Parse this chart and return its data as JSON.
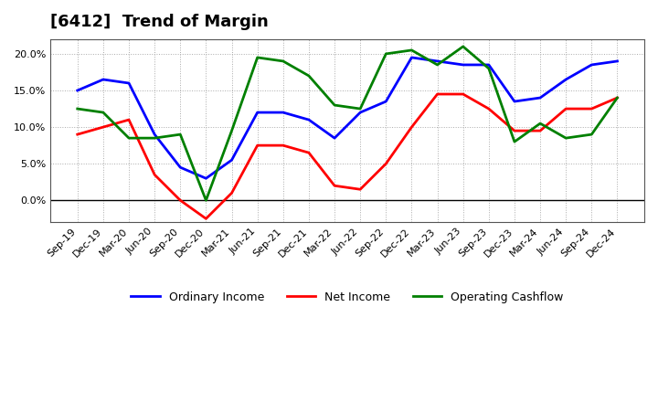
{
  "title": "[6412]  Trend of Margin",
  "x_labels": [
    "Sep-19",
    "Dec-19",
    "Mar-20",
    "Jun-20",
    "Sep-20",
    "Dec-20",
    "Mar-21",
    "Jun-21",
    "Sep-21",
    "Dec-21",
    "Mar-22",
    "Jun-22",
    "Sep-22",
    "Dec-22",
    "Mar-23",
    "Jun-23",
    "Sep-23",
    "Dec-23",
    "Mar-24",
    "Jun-24",
    "Sep-24",
    "Dec-24"
  ],
  "ordinary_income": [
    15.0,
    16.5,
    16.0,
    9.0,
    4.5,
    3.0,
    5.5,
    12.0,
    12.0,
    11.0,
    8.5,
    12.0,
    13.5,
    19.5,
    19.0,
    18.5,
    18.5,
    13.5,
    14.0,
    16.5,
    18.5,
    19.0
  ],
  "net_income": [
    9.0,
    10.0,
    11.0,
    3.5,
    0.0,
    -2.5,
    1.0,
    7.5,
    7.5,
    6.5,
    2.0,
    1.5,
    5.0,
    10.0,
    14.5,
    14.5,
    12.5,
    9.5,
    9.5,
    12.5,
    12.5,
    14.0
  ],
  "operating_cashflow": [
    12.5,
    12.0,
    8.5,
    8.5,
    9.0,
    0.0,
    9.5,
    19.5,
    19.0,
    17.0,
    13.0,
    12.5,
    20.0,
    20.5,
    18.5,
    21.0,
    18.0,
    8.0,
    10.5,
    8.5,
    9.0,
    14.0
  ],
  "ordinary_income_color": "#0000ff",
  "net_income_color": "#ff0000",
  "operating_cashflow_color": "#008000",
  "ylim": [
    -3,
    22
  ],
  "yticks": [
    0.0,
    5.0,
    10.0,
    15.0,
    20.0
  ],
  "background_color": "#ffffff",
  "plot_bg_color": "#ffffff",
  "grid_color": "#aaaaaa",
  "legend_labels": [
    "Ordinary Income",
    "Net Income",
    "Operating Cashflow"
  ]
}
